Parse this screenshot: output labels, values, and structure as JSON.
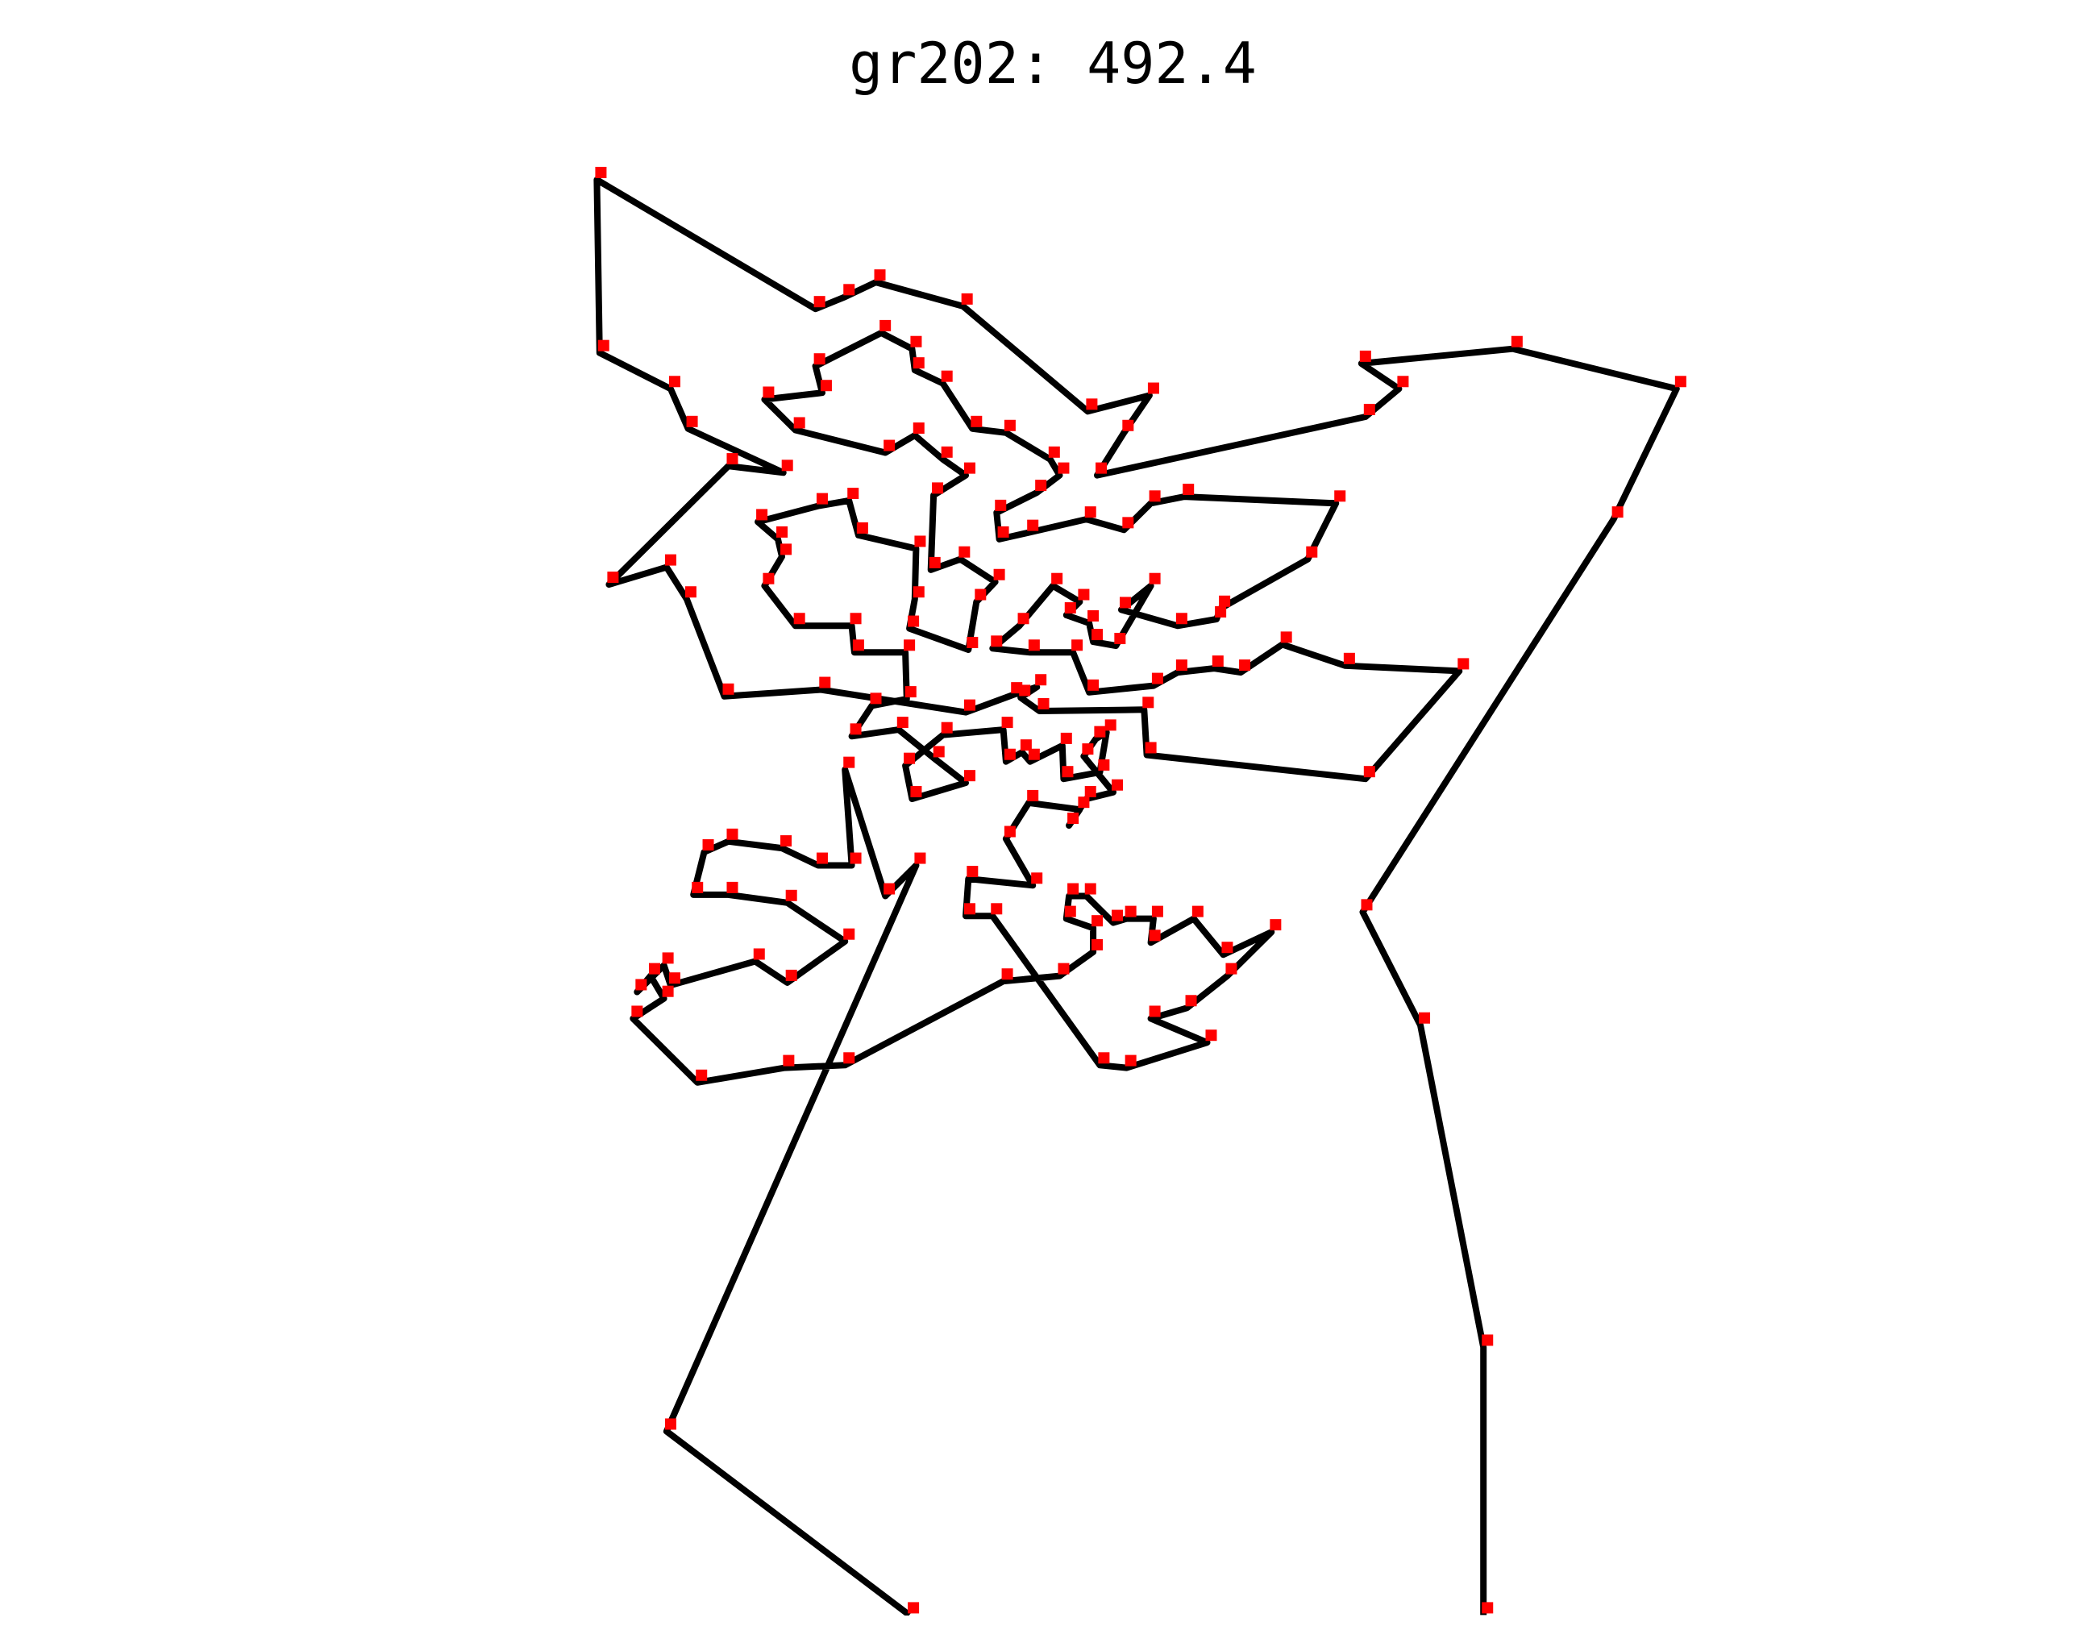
{
  "chart_data": {
    "type": "line",
    "title": "gr202: 492.4",
    "x": [
      1106,
      1106,
      1059,
      1016,
      1203,
      1250,
      1128,
      1015,
      1043,
      1018,
      818,
      838,
      857,
      811,
      718,
      653,
      630,
      608,
      445,
      447,
      500,
      513,
      584,
      543,
      454,
      497,
      512,
      540,
      612,
      720,
      755,
      773,
      761,
      775,
      853,
      855,
      1018,
      1088,
      1003,
      956,
      925,
      905,
      878,
      860,
      812,
      800,
      768,
      740,
      760,
      785,
      805,
      795,
      812,
      815,
      832,
      858,
      836,
      878,
      907,
      910,
      975,
      996,
      883,
      858,
      838,
      810,
      767,
      745,
      743,
      773,
      790,
      783,
      750,
      725,
      703,
      682,
      680,
      657,
      608,
      613,
      570,
      593,
      660,
      682,
      703,
      720,
      696,
      694,
      716,
      742,
      728,
      722,
      678,
      682,
      683,
      640,
      633,
      610,
      565,
      580,
      583,
      570,
      593,
      635,
      637,
      675,
      676,
      650,
      635,
      670,
      697,
      720,
      680,
      675,
      703,
      748,
      750,
      762,
      768,
      792,
      793,
      820,
      825,
      817,
      808,
      830,
      810,
      797,
      805,
      767,
      750,
      770,
      722,
      720,
      740,
      820,
      840,
      900,
      858,
      885,
      915,
      948,
      912,
      890,
      858,
      860,
      840,
      830,
      810,
      797,
      795,
      815,
      815,
      790,
      748,
      630,
      585,
      520,
      472,
      495,
      485,
      475,
      495,
      500,
      563,
      587,
      630,
      587,
      543,
      517,
      525,
      543,
      583,
      610,
      635,
      630,
      660,
      683,
      497,
      678
    ],
    "y": [
      1213,
      1012,
      770,
      685,
      390,
      292,
      262,
      273,
      292,
      313,
      357,
      325,
      297,
      309,
      230,
      212,
      223,
      232,
      135,
      265,
      292,
      322,
      355,
      350,
      439,
      426,
      450,
      523,
      518,
      535,
      522,
      516,
      524,
      534,
      533,
      567,
      585,
      504,
      500,
      484,
      505,
      502,
      505,
      515,
      520,
      490,
      490,
      487,
      470,
      440,
      452,
      462,
      468,
      482,
      485,
      440,
      458,
      470,
      465,
      457,
      420,
      378,
      373,
      378,
      398,
      390,
      400,
      405,
      385,
      370,
      357,
      345,
      325,
      322,
      288,
      278,
      262,
      250,
      275,
      295,
      300,
      323,
      340,
      327,
      345,
      357,
      372,
      428,
      420,
      437,
      452,
      488,
      472,
      450,
      412,
      402,
      376,
      380,
      392,
      405,
      418,
      440,
      470,
      470,
      490,
      490,
      525,
      530,
      553,
      548,
      570,
      588,
      600,
      575,
      552,
      548,
      572,
      565,
      572,
      560,
      585,
      580,
      550,
      555,
      568,
      595,
      600,
      620,
      608,
      603,
      630,
      665,
      660,
      688,
      688,
      800,
      802,
      783,
      765,
      757,
      733,
      700,
      717,
      690,
      708,
      690,
      690,
      693,
      673,
      673,
      690,
      697,
      715,
      733,
      737,
      800,
      802,
      813,
      765,
      750,
      733,
      745,
      725,
      740,
      722,
      738,
      707,
      678,
      672,
      672,
      640,
      632,
      637,
      650,
      650,
      578,
      673,
      650,
      1075,
      1213
    ],
    "xlim": [
      0,
      1550
    ],
    "ylim": [
      1240,
      0
    ],
    "color": "#000000",
    "marker_color": "#ff0000"
  }
}
